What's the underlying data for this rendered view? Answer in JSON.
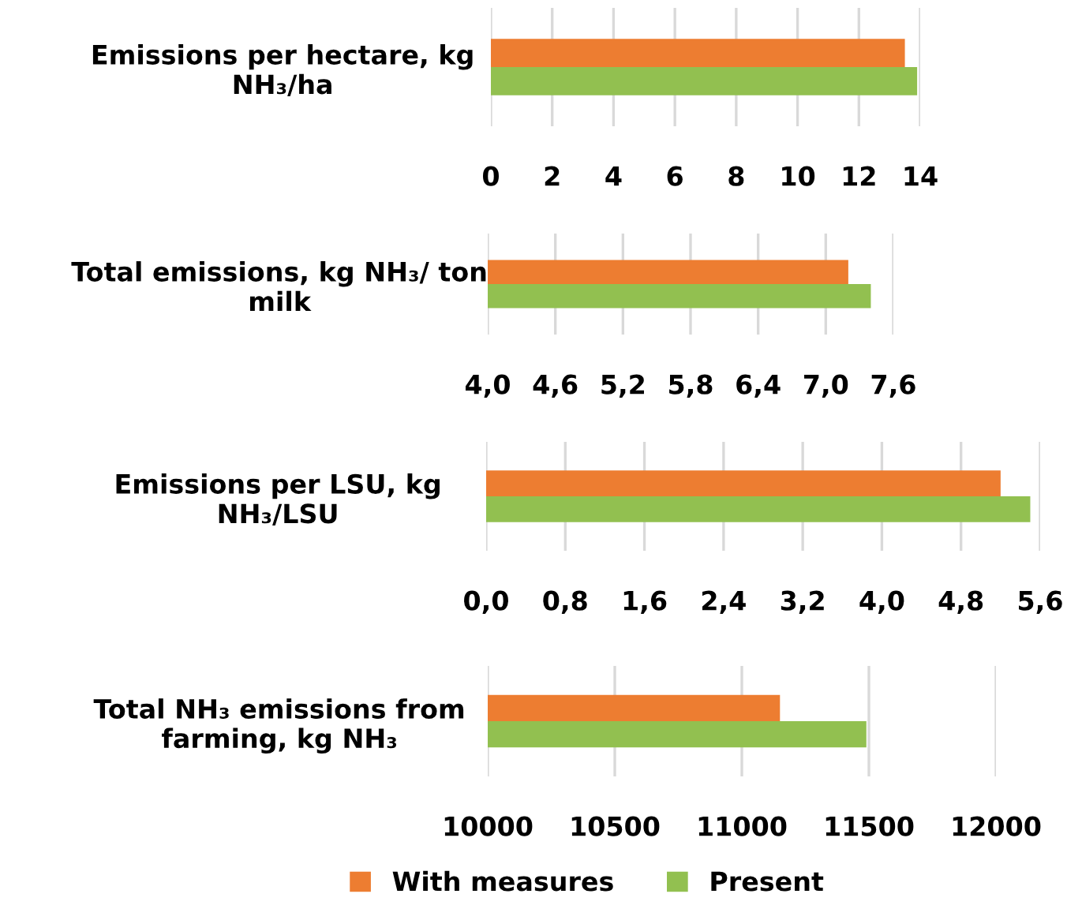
{
  "chart_data": [
    {
      "type": "bar",
      "orientation": "horizontal",
      "categories": [
        "Emissions per hectare, kg\nNH₃/ha"
      ],
      "xlim": [
        0,
        14
      ],
      "xticks": [
        0,
        2,
        4,
        6,
        8,
        10,
        12,
        14
      ],
      "grid": "x",
      "legend": "bottom",
      "series": [
        {
          "name": "With measures",
          "color": "#ed7d31",
          "values": [
            13.5
          ]
        },
        {
          "name": "Present",
          "color": "#92c050",
          "values": [
            13.9
          ]
        }
      ]
    },
    {
      "type": "bar",
      "orientation": "horizontal",
      "categories": [
        "Total emissions, kg NH₃/ ton\nmilk"
      ],
      "xlim": [
        4.0,
        7.6
      ],
      "xticks": [
        {
          "value": 4.0,
          "label": "4,0"
        },
        {
          "value": 4.6,
          "label": "4,6"
        },
        {
          "value": 5.2,
          "label": "5,2"
        },
        {
          "value": 5.8,
          "label": "5,8"
        },
        {
          "value": 6.4,
          "label": "6,4"
        },
        {
          "value": 7.0,
          "label": "7,0"
        },
        {
          "value": 7.6,
          "label": "7,6"
        }
      ],
      "grid": "x",
      "series": [
        {
          "color": "#ed7d31",
          "values": [
            7.2
          ]
        },
        {
          "color": "#92c050",
          "values": [
            7.4
          ]
        }
      ]
    },
    {
      "type": "bar",
      "orientation": "horizontal",
      "categories": [
        "Emissions per LSU, kg\nNH₃/LSU"
      ],
      "xlim": [
        0.0,
        5.6
      ],
      "xticks": [
        {
          "value": 0.0,
          "label": "0,0"
        },
        {
          "value": 0.8,
          "label": "0,8"
        },
        {
          "value": 1.6,
          "label": "1,6"
        },
        {
          "value": 2.4,
          "label": "2,4"
        },
        {
          "value": 3.2,
          "label": "3,2"
        },
        {
          "value": 4.0,
          "label": "4,0"
        },
        {
          "value": 4.8,
          "label": "4,8"
        },
        {
          "value": 5.6,
          "label": "5,6"
        }
      ],
      "grid": "x",
      "series": [
        {
          "color": "#ed7d31",
          "values": [
            5.2
          ]
        },
        {
          "color": "#92c050",
          "values": [
            5.5
          ]
        }
      ]
    },
    {
      "type": "bar",
      "orientation": "horizontal",
      "categories": [
        "Total NH₃ emissions from\nfarming, kg NH₃"
      ],
      "xlim": [
        10000,
        12000
      ],
      "xticks": [
        10000,
        10500,
        11000,
        11500,
        12000
      ],
      "grid": "x",
      "series": [
        {
          "color": "#ed7d31",
          "values": [
            11150
          ]
        },
        {
          "color": "#92c050",
          "values": [
            11490
          ]
        }
      ]
    }
  ]
}
